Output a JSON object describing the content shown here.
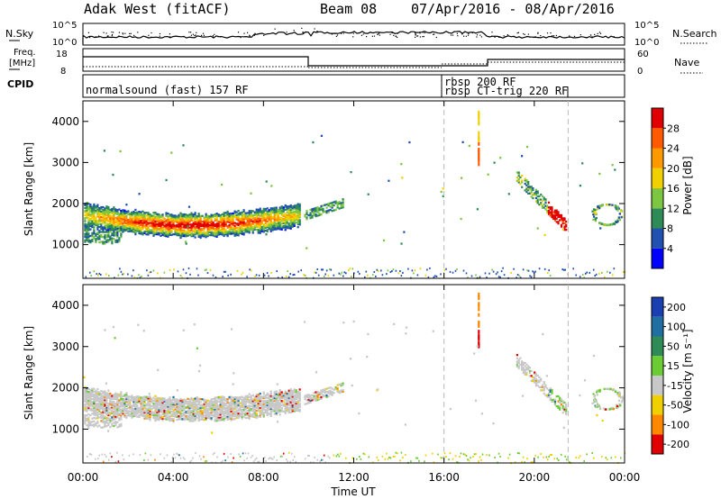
{
  "header": {
    "station": "Adak West (fitACF)",
    "beam": "Beam 08",
    "date_range": "07/Apr/2016 - 08/Apr/2016"
  },
  "summary_panels": {
    "nsky_label": "N.Sky",
    "nsearch_label": "N.Search",
    "nsky_ticks": [
      "10^5",
      "10^0"
    ],
    "nsearch_ticks": [
      "10^5",
      "10^0"
    ],
    "freq_label_line1": "Freq.",
    "freq_label_line2": "[MHz]",
    "freq_ticks": [
      "18",
      "8"
    ],
    "nave_label": "Nave",
    "nave_ticks": [
      "60",
      "0"
    ],
    "cpid_label": "CPID",
    "cpid_segments": [
      {
        "label": "normalsound (fast) 157 RF"
      },
      {
        "label": "rbsp 200 RF"
      },
      {
        "label": "rbsp CT-trig 220 RF"
      }
    ]
  },
  "chart_data": [
    {
      "type": "heatmap",
      "name": "Power",
      "ylabel": "Slant Range [km]",
      "xlabel": "Time UT",
      "x_ticks": [
        "00:00",
        "04:00",
        "08:00",
        "12:00",
        "16:00",
        "20:00",
        "00:00"
      ],
      "x_range_hours": [
        0,
        24
      ],
      "y_ticks": [
        1000,
        2000,
        3000,
        4000
      ],
      "ylim": [
        180,
        4500
      ],
      "colorbar_label": "Power [dB]",
      "colorbar_ticks": [
        "4",
        "8",
        "12",
        "16",
        "20",
        "24",
        "28"
      ],
      "colorbar_range": [
        0,
        30
      ],
      "colors": [
        "#0000ff",
        "#2050b0",
        "#2e8b57",
        "#7cc642",
        "#f0d000",
        "#ff9900",
        "#ff5a00",
        "#e00000"
      ]
    },
    {
      "type": "heatmap",
      "name": "Velocity",
      "ylabel": "Slant Range [km]",
      "xlabel": "Time UT",
      "x_ticks": [
        "00:00",
        "04:00",
        "08:00",
        "12:00",
        "16:00",
        "20:00",
        "00:00"
      ],
      "x_range_hours": [
        0,
        24
      ],
      "y_ticks": [
        1000,
        2000,
        3000,
        4000
      ],
      "ylim": [
        180,
        4500
      ],
      "colorbar_label": "Velocity [m s⁻¹]",
      "colorbar_ticks": [
        "200",
        "100",
        "50",
        "15",
        "-15",
        "-50",
        "-100",
        "-200"
      ],
      "colors": [
        "#1a3fb0",
        "#1f6fa0",
        "#2e8b57",
        "#6ccc33",
        "#c8c8c8",
        "#f0d000",
        "#ff8800",
        "#e00000"
      ]
    }
  ]
}
